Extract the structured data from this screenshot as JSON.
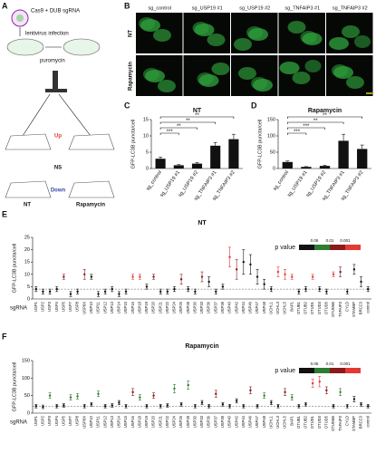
{
  "figure": {
    "panel_letters": [
      "A",
      "B",
      "C",
      "D",
      "E",
      "F"
    ],
    "diagram": {
      "virus": "Cas9 + DUB sgRNA",
      "infection": "lentivirus infection",
      "selection": "puromycin",
      "up": "Up",
      "ns": "NS",
      "down": "Down",
      "nt": "NT",
      "treated": "Rapamycin"
    },
    "images": {
      "columns": [
        "sg_control",
        "sg_USP19 #1",
        "sg_USP19 #2",
        "sg_TNFAIP3 #1",
        "sg_TNFAIP3 #2"
      ],
      "rows": [
        "NT",
        "Rapamycin"
      ]
    }
  },
  "chart_data": [
    {
      "type": "bar",
      "title": "NT",
      "ylabel": "GFP-LC3B puncta/cell",
      "categories": [
        "sg_control",
        "sg_USP19 #1",
        "sg_USP19 #2",
        "sg_TNFAIP3 #1",
        "sg_TNFAIP3 #2"
      ],
      "values": [
        3,
        1,
        1.5,
        7,
        9
      ],
      "errors": [
        0.5,
        0.2,
        0.3,
        1,
        1.5
      ],
      "color": "#111111",
      "ylim": [
        0,
        15
      ],
      "yticks": [
        0,
        5,
        10,
        15
      ],
      "brackets": [
        {
          "text": "**",
          "between": [
            "sg_control",
            "sg_TNFAIP3 #2"
          ]
        },
        {
          "text": "**",
          "between": [
            "sg_control",
            "sg_TNFAIP3 #1"
          ]
        },
        {
          "text": "**",
          "between": [
            "sg_control",
            "sg_USP19 #2"
          ]
        },
        {
          "text": "***",
          "between": [
            "sg_control",
            "sg_USP19 #1"
          ]
        }
      ]
    },
    {
      "type": "bar",
      "title": "Rapamycin",
      "ylabel": "GFP-LC3B puncta/cell",
      "categories": [
        "sg_control",
        "sg_USP19 #1",
        "sg_USP19 #2",
        "sg_TNFAIP3 #1",
        "sg_TNFAIP3 #2"
      ],
      "values": [
        20,
        5,
        8,
        85,
        60
      ],
      "errors": [
        3,
        1,
        2,
        20,
        12
      ],
      "color": "#111111",
      "ylim": [
        0,
        150
      ],
      "yticks": [
        0,
        50,
        100,
        150
      ],
      "brackets": [
        {
          "text": "**",
          "between": [
            "sg_control",
            "sg_TNFAIP3 #2"
          ]
        },
        {
          "text": "**",
          "between": [
            "sg_control",
            "sg_TNFAIP3 #1"
          ]
        },
        {
          "text": "***",
          "between": [
            "sg_control",
            "sg_USP19 #2"
          ]
        },
        {
          "text": "***",
          "between": [
            "sg_control",
            "sg_USP19 #1"
          ]
        }
      ]
    },
    {
      "type": "dot",
      "title": "NT",
      "ylabel": "GFP-LC3B puncta/cell",
      "xlabel": "sgRNA",
      "categories": [
        "USP1",
        "USP2",
        "USP3",
        "USP4",
        "USP5",
        "USP7",
        "USP8",
        "USP9X",
        "USP10",
        "USP11",
        "USP12",
        "USP13",
        "USP14",
        "USP15",
        "USP16",
        "USP18",
        "USP19",
        "USP20",
        "USP21",
        "USP22",
        "USP24",
        "USP25",
        "USP28",
        "USP30",
        "USP33",
        "USP36",
        "USP37",
        "USP39",
        "USP40",
        "USP42",
        "USP44",
        "USP46",
        "USP47",
        "USP48",
        "UCHL1",
        "UCHL3",
        "UCHL5",
        "BAP1",
        "OTUB1",
        "OTUB2",
        "OTUD1",
        "OTUD3",
        "OTUD5",
        "OTUD6B",
        "TNFAIP3",
        "CYLD",
        "STAMBP",
        "BRCC3",
        "control"
      ],
      "values": [
        4,
        3,
        3,
        4,
        9,
        2,
        3,
        10,
        9,
        2,
        3,
        4,
        2,
        3,
        9,
        9,
        5,
        9,
        3,
        3,
        4,
        8,
        4,
        3,
        9,
        7,
        3,
        5,
        17,
        12,
        15,
        14,
        9,
        6,
        4,
        11,
        10,
        9,
        3,
        4,
        9,
        4,
        3,
        10,
        11,
        3,
        12,
        7,
        4
      ],
      "errors": [
        1,
        1,
        1,
        1,
        1,
        1,
        1,
        2,
        1,
        1,
        1,
        1,
        1,
        1,
        1,
        1,
        1,
        1,
        1,
        1,
        1,
        2,
        1,
        1,
        2,
        2,
        1,
        1,
        4,
        4,
        5,
        4,
        3,
        2,
        1,
        2,
        2,
        1,
        1,
        1,
        1,
        1,
        1,
        1,
        2,
        1,
        2,
        2,
        1
      ],
      "point_colors": [
        "#111111",
        "#111111",
        "#111111",
        "#111111",
        "#8b1a1a",
        "#111111",
        "#111111",
        "#8b1a1a",
        "#111111",
        "#111111",
        "#111111",
        "#111111",
        "#111111",
        "#111111",
        "#e53935",
        "#e53935",
        "#111111",
        "#8b1a1a",
        "#111111",
        "#111111",
        "#111111",
        "#8b1a1a",
        "#111111",
        "#111111",
        "#8b1a1a",
        "#111111",
        "#111111",
        "#111111",
        "#e53935",
        "#8b1a1a",
        "#111111",
        "#111111",
        "#111111",
        "#111111",
        "#111111",
        "#e53935",
        "#e53935",
        "#e53935",
        "#111111",
        "#111111",
        "#e53935",
        "#111111",
        "#111111",
        "#e53935",
        "#8b1a1a",
        "#111111",
        "#111111",
        "#111111",
        "#111111"
      ],
      "ylim": [
        0,
        25
      ],
      "yticks": [
        0,
        5,
        10,
        15,
        20,
        25
      ],
      "ref_line": 4,
      "legend": {
        "title": "p value",
        "ticks": [
          0.05,
          0.01,
          0.001
        ],
        "colors": [
          "#111111",
          "#2e7d32",
          "#8b1a1a",
          "#e53935"
        ]
      }
    },
    {
      "type": "dot",
      "title": "Rapamycin",
      "ylabel": "GFP-LC3B puncta/cell",
      "xlabel": "sgRNA",
      "categories": [
        "USP1",
        "USP2",
        "USP3",
        "USP4",
        "USP5",
        "USP7",
        "USP8",
        "USP9X",
        "USP10",
        "USP11",
        "USP12",
        "USP13",
        "USP14",
        "USP15",
        "USP16",
        "USP18",
        "USP19",
        "USP20",
        "USP21",
        "USP22",
        "USP24",
        "USP25",
        "USP28",
        "USP30",
        "USP33",
        "USP36",
        "USP37",
        "USP39",
        "USP40",
        "USP42",
        "USP44",
        "USP46",
        "USP47",
        "USP48",
        "UCHL1",
        "UCHL3",
        "UCHL5",
        "BAP1",
        "OTUB1",
        "OTUB2",
        "OTUD1",
        "OTUD3",
        "OTUD5",
        "OTUD6B",
        "TNFAIP3",
        "CYLD",
        "STAMBP",
        "BRCC3",
        "control"
      ],
      "values": [
        20,
        18,
        50,
        20,
        22,
        45,
        48,
        20,
        25,
        55,
        20,
        22,
        30,
        20,
        60,
        45,
        20,
        50,
        20,
        22,
        70,
        25,
        80,
        20,
        30,
        20,
        55,
        25,
        20,
        35,
        20,
        65,
        20,
        50,
        30,
        20,
        60,
        45,
        20,
        25,
        85,
        90,
        65,
        20,
        60,
        20,
        40,
        25,
        20
      ],
      "errors": [
        5,
        5,
        8,
        5,
        5,
        8,
        8,
        5,
        5,
        8,
        5,
        5,
        6,
        5,
        10,
        8,
        5,
        8,
        5,
        5,
        12,
        5,
        12,
        5,
        6,
        5,
        10,
        5,
        5,
        6,
        5,
        10,
        5,
        8,
        6,
        5,
        10,
        8,
        5,
        5,
        12,
        15,
        10,
        5,
        10,
        5,
        8,
        5,
        5
      ],
      "point_colors": [
        "#111111",
        "#111111",
        "#2e7d32",
        "#111111",
        "#111111",
        "#2e7d32",
        "#2e7d32",
        "#111111",
        "#111111",
        "#2e7d32",
        "#111111",
        "#111111",
        "#111111",
        "#111111",
        "#8b1a1a",
        "#2e7d32",
        "#111111",
        "#8b1a1a",
        "#111111",
        "#111111",
        "#2e7d32",
        "#111111",
        "#2e7d32",
        "#111111",
        "#111111",
        "#111111",
        "#8b1a1a",
        "#111111",
        "#111111",
        "#111111",
        "#111111",
        "#8b1a1a",
        "#111111",
        "#2e7d32",
        "#111111",
        "#111111",
        "#8b1a1a",
        "#2e7d32",
        "#111111",
        "#111111",
        "#e53935",
        "#e53935",
        "#8b1a1a",
        "#111111",
        "#2e7d32",
        "#111111",
        "#111111",
        "#111111",
        "#111111"
      ],
      "ylim": [
        0,
        150
      ],
      "yticks": [
        0,
        50,
        100,
        150
      ],
      "ref_line": 20,
      "legend": {
        "title": "p value",
        "ticks": [
          0.05,
          0.01,
          0.001
        ],
        "colors": [
          "#111111",
          "#2e7d32",
          "#8b1a1a",
          "#e53935"
        ]
      }
    }
  ]
}
